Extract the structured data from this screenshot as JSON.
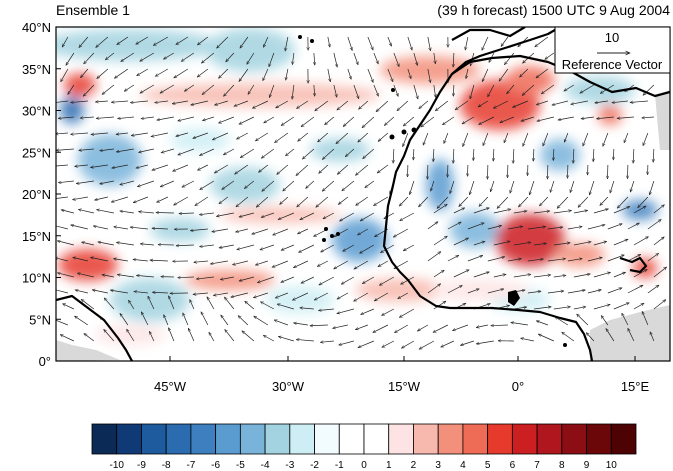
{
  "title_left": "Ensemble 1",
  "title_right": "(39 h forecast) 1500 UTC 9 Aug 2004",
  "reference_vector": {
    "magnitude": "10",
    "label": "Reference Vector"
  },
  "lat_labels": [
    "40°N",
    "35°N",
    "30°N",
    "25°N",
    "20°N",
    "15°N",
    "10°N",
    "5°N",
    "0°"
  ],
  "lon_labels": [
    "45°W",
    "30°W",
    "15°W",
    "0°",
    "15°E"
  ],
  "colorbar": {
    "labels": [
      "-10",
      "-9",
      "-8",
      "-7",
      "-6",
      "-5",
      "-4",
      "-3",
      "-2",
      "-1",
      "0",
      "1",
      "2",
      "3",
      "4",
      "5",
      "6",
      "7",
      "8",
      "9",
      "10"
    ],
    "colors": [
      "#0b2a55",
      "#0f3a75",
      "#1e5a9e",
      "#2b6cb0",
      "#3d7fbf",
      "#5a9bd0",
      "#79b3da",
      "#a3d3e0",
      "#cdeef4",
      "#f2fbfd",
      "#ffffff",
      "#ffffff",
      "#fde3e3",
      "#f7b9ad",
      "#f3907c",
      "#ee6b56",
      "#e63a2d",
      "#cc1f22",
      "#b0161d",
      "#8a0e13",
      "#6b0709",
      "#4d0204"
    ]
  },
  "colors": {
    "positive": "#e64b3c",
    "negative": "#3d8fc0",
    "land_coast": "#000000",
    "masked": "#d9d9d9"
  }
}
